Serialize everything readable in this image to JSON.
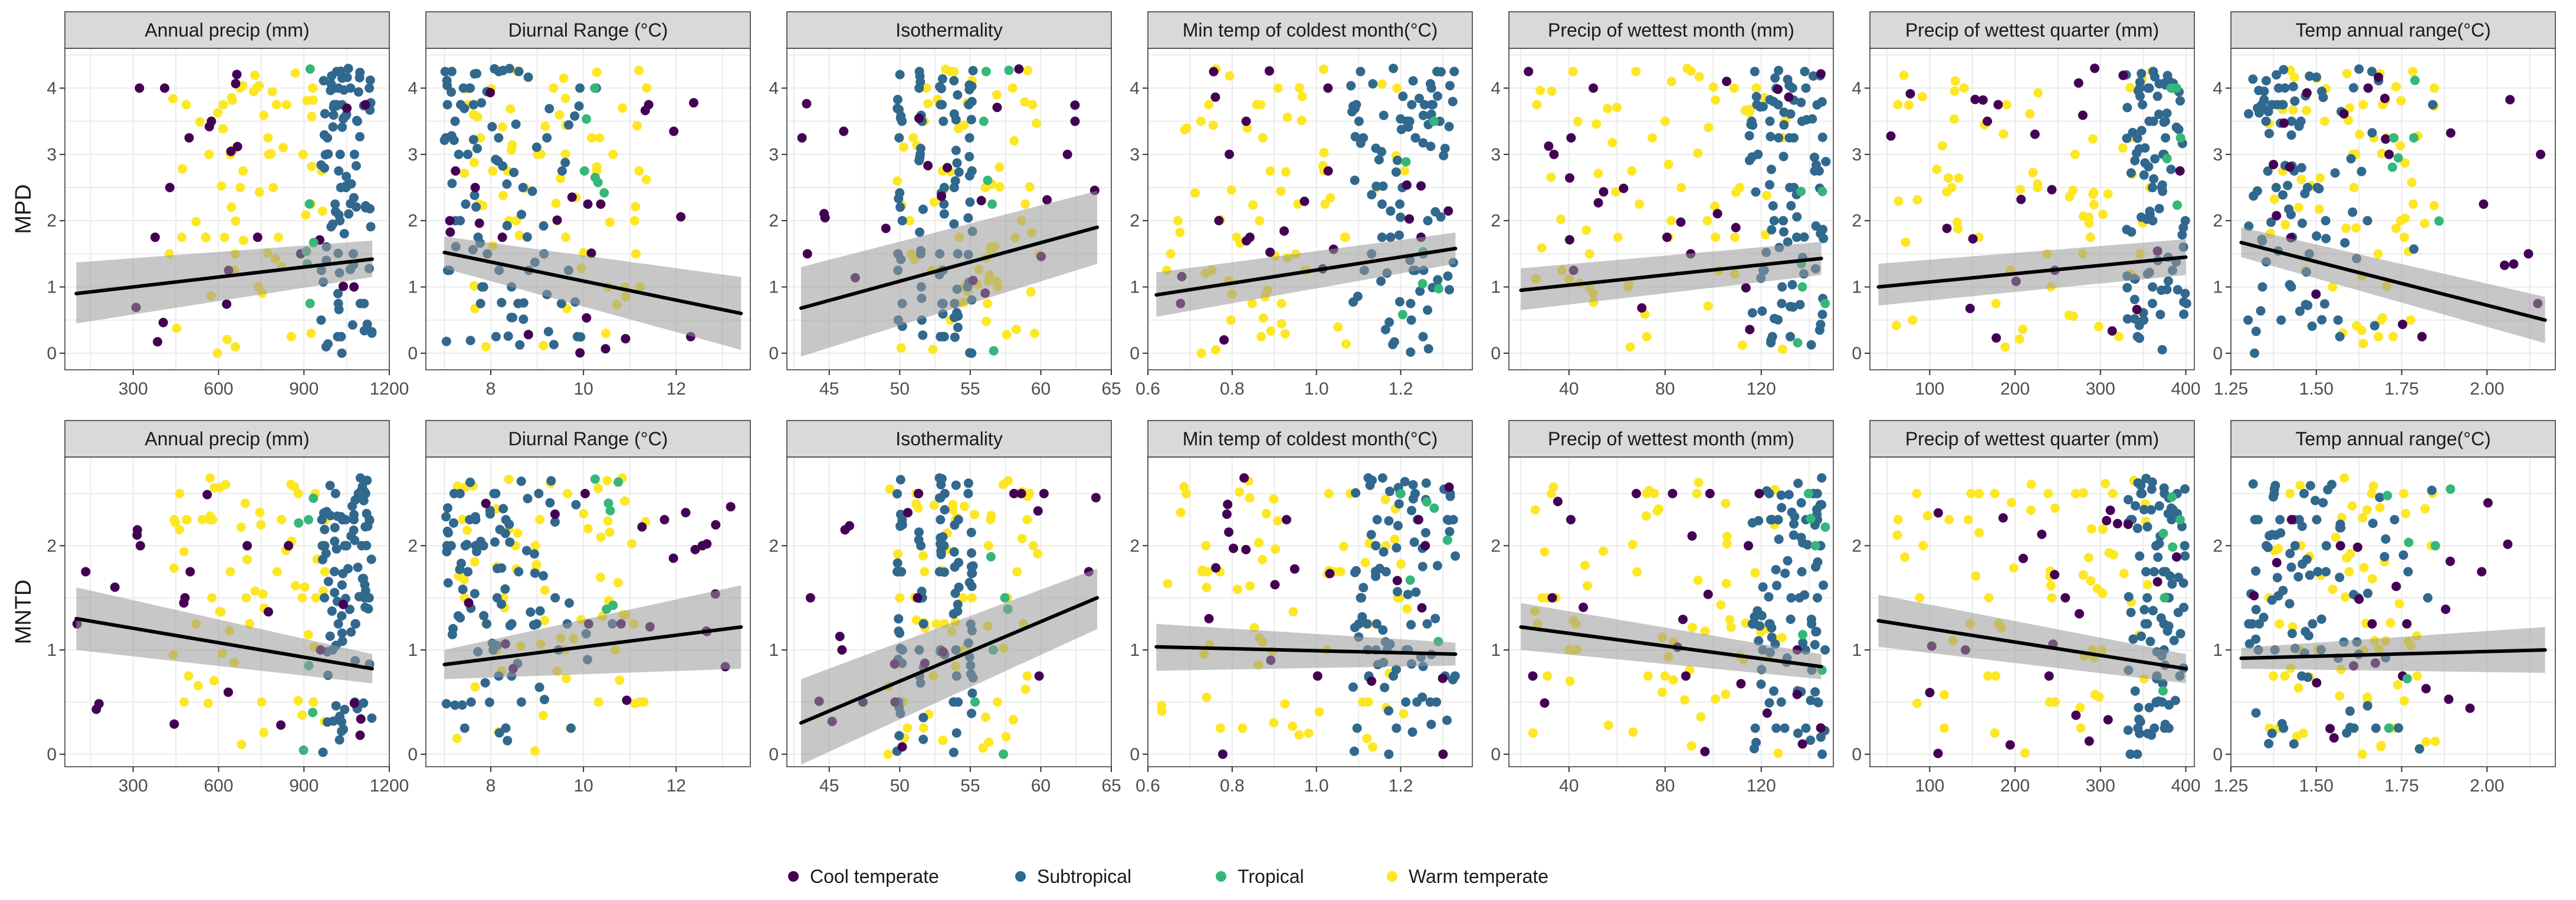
{
  "chart_data": {
    "type": "scatter",
    "layout": "faceted grid 2 rows x 7 columns, points coloured by climate group with linear fit line and confidence band",
    "rows": [
      {
        "ylabel": "MPD",
        "ylim": [
          -0.25,
          4.6
        ],
        "yticks": [
          0,
          1,
          2,
          3,
          4
        ]
      },
      {
        "ylabel": "MNTD",
        "ylim": [
          -0.12,
          2.85
        ],
        "yticks": [
          0,
          1,
          2
        ]
      }
    ],
    "columns": [
      {
        "title": "Annual precip (mm)",
        "xlim": [
          60,
          1200
        ],
        "xticks": [
          300,
          600,
          900,
          1200
        ],
        "tick_labels": [
          "300",
          "600",
          "900",
          "1200"
        ]
      },
      {
        "title": "Diurnal Range (°C)",
        "xlim": [
          6.6,
          13.6
        ],
        "xticks": [
          8,
          10,
          12
        ],
        "tick_labels": [
          "8",
          "10",
          "12"
        ]
      },
      {
        "title": "Isothermality",
        "xlim": [
          42,
          65
        ],
        "xticks": [
          45,
          50,
          55,
          60,
          65
        ],
        "tick_labels": [
          "45",
          "50",
          "55",
          "60",
          "65"
        ]
      },
      {
        "title": "Min temp of coldest month(°C)",
        "xlim": [
          0.6,
          1.37
        ],
        "xticks": [
          0.6,
          0.8,
          1.0,
          1.2
        ],
        "tick_labels": [
          "0.6",
          "0.8",
          "1.0",
          "1.2"
        ]
      },
      {
        "title": "Precip of wettest month (mm)",
        "xlim": [
          15,
          150
        ],
        "xticks": [
          40,
          80,
          120
        ],
        "tick_labels": [
          "40",
          "80",
          "120"
        ]
      },
      {
        "title": "Precip of wettest quarter (mm)",
        "xlim": [
          30,
          410
        ],
        "xticks": [
          100,
          200,
          300,
          400
        ],
        "tick_labels": [
          "100",
          "200",
          "300",
          "400"
        ]
      },
      {
        "title": "Temp annual range(°C)",
        "xlim": [
          1.25,
          2.2
        ],
        "xticks": [
          1.25,
          1.5,
          1.75,
          2.0
        ],
        "tick_labels": [
          "1.25",
          "1.50",
          "1.75",
          "2.00"
        ]
      }
    ],
    "legend": {
      "position": "bottom",
      "entries": [
        {
          "label": "Cool temperate",
          "color": "#440154"
        },
        {
          "label": "Subtropical",
          "color": "#31688e"
        },
        {
          "label": "Tropical",
          "color": "#35b779"
        },
        {
          "label": "Warm temperate",
          "color": "#fde725"
        }
      ]
    },
    "fits": [
      [
        {
          "x": [
            100,
            1140
          ],
          "y": [
            0.9,
            1.42
          ],
          "lo": [
            0.45,
            1.15
          ],
          "hi": [
            1.37,
            1.7
          ]
        },
        {
          "x": [
            7.0,
            13.4
          ],
          "y": [
            1.52,
            0.6
          ],
          "lo": [
            1.28,
            0.05
          ],
          "hi": [
            1.76,
            1.15
          ]
        },
        {
          "x": [
            43,
            64
          ],
          "y": [
            0.68,
            1.9
          ],
          "lo": [
            -0.05,
            1.35
          ],
          "hi": [
            1.3,
            2.45
          ]
        },
        {
          "x": [
            0.62,
            1.33
          ],
          "y": [
            0.88,
            1.58
          ],
          "lo": [
            0.55,
            1.35
          ],
          "hi": [
            1.22,
            1.82
          ]
        },
        {
          "x": [
            20,
            145
          ],
          "y": [
            0.95,
            1.43
          ],
          "lo": [
            0.65,
            1.18
          ],
          "hi": [
            1.28,
            1.68
          ]
        },
        {
          "x": [
            40,
            400
          ],
          "y": [
            1.0,
            1.45
          ],
          "lo": [
            0.72,
            1.18
          ],
          "hi": [
            1.35,
            1.72
          ]
        },
        {
          "x": [
            1.28,
            2.17
          ],
          "y": [
            1.67,
            0.5
          ],
          "lo": [
            1.45,
            0.15
          ],
          "hi": [
            1.9,
            0.85
          ]
        }
      ],
      [
        {
          "x": [
            100,
            1140
          ],
          "y": [
            1.3,
            0.82
          ],
          "lo": [
            1.0,
            0.68
          ],
          "hi": [
            1.6,
            0.96
          ]
        },
        {
          "x": [
            7.0,
            13.4
          ],
          "y": [
            0.86,
            1.22
          ],
          "lo": [
            0.72,
            0.82
          ],
          "hi": [
            1.0,
            1.62
          ]
        },
        {
          "x": [
            43,
            64
          ],
          "y": [
            0.3,
            1.5
          ],
          "lo": [
            -0.1,
            1.2
          ],
          "hi": [
            0.72,
            1.78
          ]
        },
        {
          "x": [
            0.62,
            1.33
          ],
          "y": [
            1.03,
            0.96
          ],
          "lo": [
            0.8,
            0.85
          ],
          "hi": [
            1.25,
            1.07
          ]
        },
        {
          "x": [
            20,
            145
          ],
          "y": [
            1.22,
            0.84
          ],
          "lo": [
            1.0,
            0.72
          ],
          "hi": [
            1.45,
            0.96
          ]
        },
        {
          "x": [
            40,
            400
          ],
          "y": [
            1.28,
            0.82
          ],
          "lo": [
            1.03,
            0.68
          ],
          "hi": [
            1.53,
            0.96
          ]
        },
        {
          "x": [
            1.28,
            2.17
          ],
          "y": [
            0.92,
            1.0
          ],
          "lo": [
            0.82,
            0.78
          ],
          "hi": [
            1.02,
            1.22
          ]
        }
      ]
    ],
    "points_per_panel": 190,
    "point_group_proportions": {
      "Cool temperate": 0.12,
      "Subtropical": 0.5,
      "Tropical": 0.03,
      "Warm temperate": 0.35
    }
  }
}
